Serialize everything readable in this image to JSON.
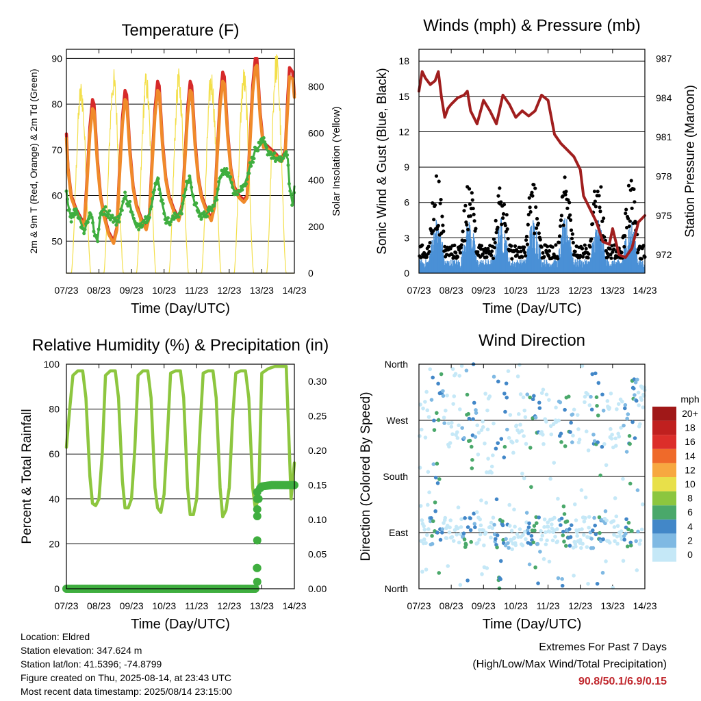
{
  "x_ticks": [
    "07/23",
    "08/23",
    "09/23",
    "10/23",
    "11/23",
    "12/23",
    "13/23",
    "14/23"
  ],
  "chart_data": [
    {
      "type": "line",
      "title": "Temperature (F)",
      "xlabel": "Time (Day/UTC)",
      "ylabel": "2m & 9m T (Red, Orange) & 2m Td (Green)",
      "y2label": "Solar Insolation (Yellow)",
      "ylim": [
        43,
        92
      ],
      "y_ticks": [
        50,
        60,
        70,
        80,
        90
      ],
      "y2lim": [
        0,
        960
      ],
      "y2_ticks": [
        0,
        200,
        400,
        600,
        800
      ],
      "grid": true,
      "x": [
        0,
        0.05,
        0.15,
        0.3,
        0.45,
        0.55,
        0.62,
        0.72,
        0.8,
        0.85,
        0.95,
        1.05,
        1.15,
        1.3,
        1.45,
        1.55,
        1.62,
        1.72,
        1.8,
        1.85,
        1.95,
        2.05,
        2.15,
        2.3,
        2.45,
        2.55,
        2.62,
        2.72,
        2.8,
        2.85,
        2.95,
        3.05,
        3.15,
        3.3,
        3.45,
        3.55,
        3.62,
        3.72,
        3.8,
        3.85,
        3.95,
        4.05,
        4.15,
        4.3,
        4.45,
        4.55,
        4.62,
        4.72,
        4.8,
        4.85,
        4.95,
        5.05,
        5.15,
        5.3,
        5.45,
        5.55,
        5.62,
        5.72,
        5.8,
        5.85,
        5.95,
        6.05,
        6.15,
        6.3,
        6.45,
        6.55,
        6.62,
        6.72,
        6.8,
        6.85,
        6.95,
        7.0
      ],
      "series": [
        {
          "color": "#d62a2a",
          "values": [
            73.5,
            66,
            60,
            57,
            55,
            54,
            62,
            75,
            81,
            80,
            68,
            60,
            56,
            52,
            50,
            53,
            64,
            77,
            83,
            82,
            70,
            62,
            58,
            55,
            53,
            56,
            66,
            79,
            85,
            84,
            72,
            64,
            60,
            57,
            55,
            58,
            66,
            79,
            85,
            84,
            72,
            64,
            60,
            57,
            55,
            58,
            68,
            81,
            87,
            86,
            74,
            66,
            62,
            60,
            59,
            60,
            70,
            84,
            90,
            90,
            78,
            71,
            71,
            70,
            69,
            68,
            68,
            70,
            82,
            88,
            87,
            82
          ]
        },
        {
          "color": "#f08a2a",
          "values": [
            72.5,
            65.5,
            59.5,
            56.5,
            54.5,
            53.5,
            61,
            73.5,
            79,
            78.5,
            67,
            59.5,
            55.5,
            51.5,
            49.5,
            52.5,
            63,
            75.5,
            81,
            80.5,
            69,
            61.5,
            57.5,
            54.5,
            52.5,
            55.5,
            65,
            77.5,
            83,
            82.5,
            71,
            63.5,
            59.5,
            56.5,
            54.5,
            57.5,
            65,
            77.5,
            83,
            82.5,
            71,
            63.5,
            59.5,
            56.5,
            54.5,
            57.5,
            67,
            79.5,
            85,
            84.5,
            73,
            65.5,
            61.5,
            59.5,
            58.5,
            59.5,
            69,
            82.5,
            88,
            88.5,
            77,
            70.5,
            70.5,
            69.5,
            68.5,
            67.5,
            67.5,
            69.5,
            80,
            86,
            85.5,
            81.5
          ]
        },
        {
          "color": "#3fae3f",
          "values": [
            61,
            58,
            55,
            57,
            54,
            52,
            54,
            56,
            55,
            52,
            50,
            56,
            57,
            56,
            55,
            54,
            55,
            58,
            60,
            59,
            58,
            55,
            53,
            54,
            55,
            56,
            58,
            62,
            64,
            62,
            58,
            55,
            54,
            55,
            56,
            57,
            60,
            63,
            64,
            61,
            58,
            57,
            55,
            56,
            57,
            58,
            60,
            64,
            65,
            66,
            65,
            63,
            61,
            61,
            62,
            64,
            66,
            68,
            70,
            70,
            71,
            72,
            70,
            69,
            68,
            67.5,
            68,
            69,
            68,
            62,
            58,
            62
          ]
        }
      ],
      "solar": {
        "color": "#f3df4a",
        "peaks_day": [
          0.45,
          1.45,
          2.45,
          3.45,
          4.45,
          5.45,
          6.45
        ],
        "peak_values": [
          830,
          880,
          870,
          880,
          880,
          890,
          960
        ]
      }
    },
    {
      "type": "scatter",
      "title": "Winds (mph) & Pressure (mb)",
      "xlabel": "Time (Day/UTC)",
      "ylabel": "Sonic Wind & Gust (Blue, Black)",
      "y2label": "Station Pressure (Maroon)",
      "ylim": [
        0,
        19
      ],
      "y_ticks": [
        0,
        3,
        6,
        9,
        12,
        15,
        18
      ],
      "y2lim": [
        970.6,
        987.7
      ],
      "y2_ticks": [
        972,
        975,
        978,
        981,
        984,
        987
      ],
      "grid": true,
      "wind_color": "#4a90d6",
      "gust_color": "#000000",
      "pressure": {
        "color": "#a01e1e",
        "x": [
          0,
          0.1,
          0.2,
          0.35,
          0.5,
          0.6,
          0.7,
          0.8,
          0.9,
          1.0,
          1.2,
          1.4,
          1.5,
          1.6,
          1.8,
          2.0,
          2.2,
          2.4,
          2.6,
          2.8,
          3.0,
          3.2,
          3.4,
          3.6,
          3.8,
          4.0,
          4.2,
          4.4,
          4.6,
          4.8,
          5.0,
          5.1,
          5.3,
          5.5,
          5.7,
          5.9,
          6.0,
          6.2,
          6.4,
          6.6,
          6.8,
          7.0
        ],
        "values": [
          984.5,
          986.0,
          985.5,
          985.0,
          985.3,
          986.0,
          984.0,
          982.5,
          983.2,
          983.5,
          984.0,
          984.2,
          984.5,
          983.0,
          982.0,
          983.8,
          983.0,
          982.0,
          984.2,
          983.5,
          982.5,
          983.0,
          982.6,
          983.0,
          984.2,
          983.8,
          981.2,
          980.5,
          980.0,
          979.5,
          978.5,
          976.5,
          975.5,
          974.5,
          973.0,
          972.8,
          974.0,
          972.0,
          971.8,
          972.5,
          974.5,
          975.0
        ]
      }
    },
    {
      "type": "line",
      "title": "Relative Humidity (%) & Precipitation (in)",
      "xlabel": "Time (Day/UTC)",
      "ylabel": "Percent & Total Rainfall",
      "ylim": [
        0,
        100
      ],
      "y_ticks": [
        0,
        20,
        40,
        60,
        80,
        100
      ],
      "y2lim": [
        0,
        0.325
      ],
      "y2_ticks": [
        "0.00",
        "0.05",
        "0.10",
        "0.15",
        "0.20",
        "0.25",
        "0.30"
      ],
      "grid": true,
      "rh": {
        "color": "#8dc63f",
        "x": [
          0,
          0.1,
          0.2,
          0.35,
          0.5,
          0.6,
          0.72,
          0.8,
          0.9,
          1.0,
          1.1,
          1.2,
          1.35,
          1.5,
          1.6,
          1.72,
          1.8,
          1.9,
          2.0,
          2.1,
          2.2,
          2.35,
          2.5,
          2.6,
          2.72,
          2.8,
          2.9,
          3.0,
          3.1,
          3.2,
          3.35,
          3.5,
          3.6,
          3.72,
          3.8,
          3.9,
          4.0,
          4.1,
          4.2,
          4.35,
          4.5,
          4.6,
          4.72,
          4.8,
          4.9,
          5.0,
          5.1,
          5.2,
          5.35,
          5.5,
          5.6,
          5.72,
          5.8,
          5.9,
          6.0,
          6.1,
          6.2,
          6.4,
          6.6,
          6.75,
          6.85,
          6.9,
          7.0
        ],
        "values": [
          63,
          80,
          95,
          97,
          97,
          85,
          50,
          38,
          37,
          40,
          60,
          95,
          97,
          97,
          85,
          48,
          36,
          36,
          40,
          62,
          95,
          97,
          97,
          85,
          45,
          36,
          34,
          42,
          68,
          96,
          97,
          97,
          85,
          45,
          33,
          33,
          40,
          70,
          96,
          97,
          97,
          85,
          45,
          32,
          35,
          45,
          75,
          96,
          97,
          97,
          85,
          45,
          36,
          40,
          96,
          97,
          98,
          99,
          99,
          99,
          60,
          40,
          56
        ]
      },
      "precip": {
        "color": "#3fae3f",
        "x": [
          0,
          1,
          2,
          3,
          4,
          5,
          5.8,
          5.83,
          5.85,
          5.86,
          5.87,
          5.88,
          5.9,
          5.92,
          5.94,
          6.0,
          6.3,
          6.6,
          7.0
        ],
        "values": [
          0,
          0,
          0,
          0,
          0,
          0,
          0,
          0.0,
          0.03,
          0.07,
          0.105,
          0.115,
          0.13,
          0.14,
          0.145,
          0.148,
          0.15,
          0.15,
          0.15
        ]
      }
    },
    {
      "type": "scatter",
      "title": "Wind Direction",
      "xlabel": "Time (Day/UTC)",
      "ylabel": "Direction (Colored By Speed)",
      "y_tick_labels": [
        "North",
        "East",
        "South",
        "West",
        "North"
      ],
      "ylim": [
        0,
        360
      ],
      "grid": true,
      "legend": {
        "title": "mph",
        "position": "right",
        "labels": [
          "0",
          "2",
          "4",
          "6",
          "8",
          "10",
          "12",
          "14",
          "16",
          "18",
          "20+"
        ],
        "colors": [
          "#c5e8f7",
          "#7fb9e3",
          "#4287c8",
          "#4aa86a",
          "#8cc63f",
          "#e8e04a",
          "#f7a840",
          "#ef6a2a",
          "#dc2e2a",
          "#c0201f",
          "#a01818"
        ]
      }
    }
  ],
  "footer": {
    "location": "Location: Eldred",
    "elevation": "Station elevation: 347.624 m",
    "latlon": "Station lat/lon: 41.5396; -74.8799",
    "created": "Figure created on Thu, 2025-08-14, at 23:43 UTC",
    "recent": "Most recent data timestamp: 2025/08/14 23:15:00"
  },
  "extremes": {
    "title": "Extremes For Past 7 Days",
    "subtitle": "(High/Low/Max Wind/Total Precipitation)",
    "values": "90.8/50.1/6.9/0.15"
  }
}
